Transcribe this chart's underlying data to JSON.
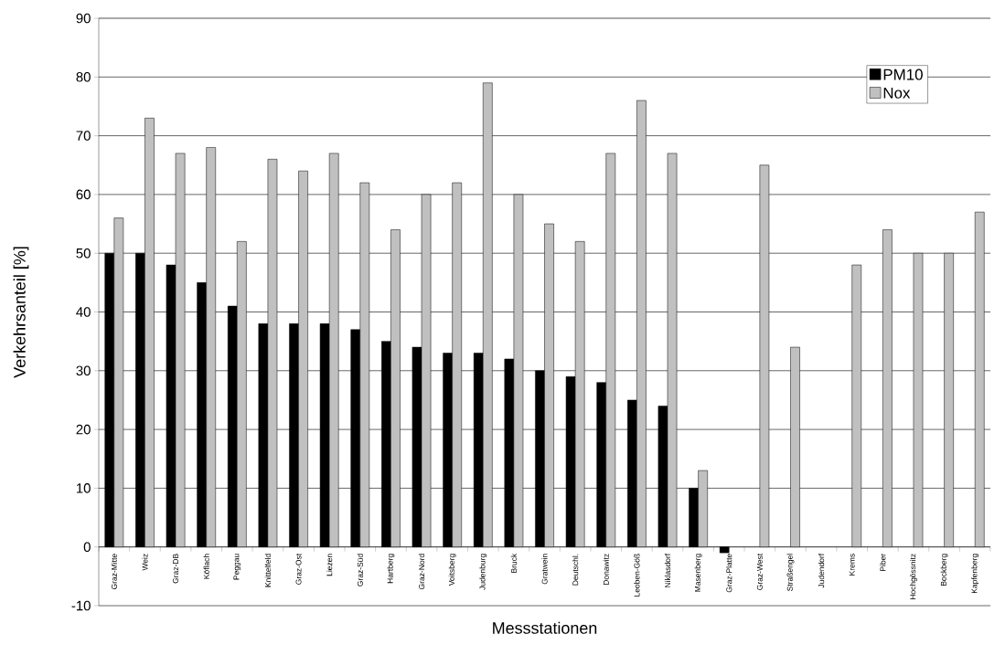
{
  "chart_data": {
    "type": "bar",
    "xlabel": "Messstationen",
    "ylabel": "Verkehrsanteil [%]",
    "categories": [
      "Graz-Mitte",
      "Weiz",
      "Graz-DB",
      "Köflach",
      "Peggau",
      "Knittelfeld",
      "Graz-Ost",
      "Liezen",
      "Graz-Süd",
      "Hartberg",
      "Graz-Nord",
      "Voitsberg",
      "Judenburg",
      "Bruck",
      "Gratwein",
      "Deutschl.",
      "Donawitz",
      "Leoben-Göß",
      "Niklasdorf",
      "Masenberg",
      "Graz-Platte",
      "Graz-West",
      "Straßengel",
      "Judendorf",
      "Krems",
      "Piber",
      "Hochgössnitz",
      "Bockberg",
      "Kapfenberg"
    ],
    "series": [
      {
        "name": "PM10",
        "color": "#000000",
        "values": [
          50,
          50,
          48,
          45,
          41,
          38,
          38,
          38,
          37,
          35,
          34,
          33,
          33,
          32,
          30,
          29,
          28,
          25,
          24,
          10,
          -1,
          null,
          null,
          null,
          null,
          null,
          null,
          null,
          null
        ]
      },
      {
        "name": "Nox",
        "color": "#c0c0c0",
        "values": [
          56,
          73,
          67,
          68,
          52,
          66,
          64,
          67,
          62,
          54,
          60,
          62,
          79,
          60,
          55,
          52,
          67,
          76,
          67,
          13,
          null,
          65,
          34,
          null,
          48,
          54,
          50,
          50,
          57
        ]
      }
    ],
    "ylim": [
      -10,
      90
    ],
    "yticks": [
      -10,
      0,
      10,
      20,
      30,
      40,
      50,
      60,
      70,
      80,
      90
    ],
    "grid": "y",
    "legend": "top right"
  }
}
